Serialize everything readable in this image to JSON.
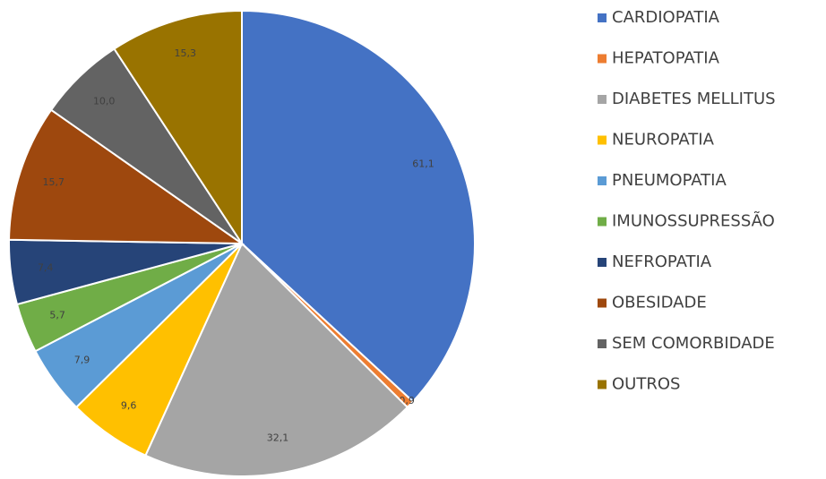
{
  "chart_data": {
    "type": "pie",
    "categories": [
      "CARDIOPATIA",
      "HEPATOPATIA",
      "DIABETES MELLITUS",
      "NEUROPATIA",
      "PNEUMOPATIA",
      "IMUNOSSUPRESSÃO",
      "NEFROPATIA",
      "OBESIDADE",
      "SEM COMORBIDADE",
      "OUTROS"
    ],
    "values": [
      61.1,
      0.9,
      32.1,
      9.6,
      7.9,
      5.7,
      7.4,
      15.7,
      10.0,
      15.3
    ],
    "value_labels": [
      "61,1",
      "0,9",
      "32,1",
      "9,6",
      "7,9",
      "5,7",
      "7,4",
      "15,7",
      "10,0",
      "15,3"
    ],
    "colors": [
      "#4472c4",
      "#ed7d31",
      "#a5a5a5",
      "#ffc000",
      "#5b9bd5",
      "#70ad47",
      "#264478",
      "#9e480e",
      "#636363",
      "#997300"
    ],
    "legend": "right"
  }
}
